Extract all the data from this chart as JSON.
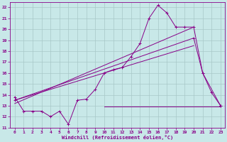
{
  "xlabel": "Windchill (Refroidissement éolien,°C)",
  "xlim": [
    -0.5,
    23.5
  ],
  "ylim": [
    11,
    22.5
  ],
  "xticks": [
    0,
    1,
    2,
    3,
    4,
    5,
    6,
    7,
    8,
    9,
    10,
    11,
    12,
    13,
    14,
    15,
    16,
    17,
    18,
    19,
    20,
    21,
    22,
    23
  ],
  "yticks": [
    11,
    12,
    13,
    14,
    15,
    16,
    17,
    18,
    19,
    20,
    21,
    22
  ],
  "bg_color": "#c8e8e8",
  "grid_color": "#a8c8c8",
  "line_color": "#880088",
  "line1_x": [
    0,
    1,
    2,
    3,
    4,
    5,
    6,
    7,
    8,
    9,
    10,
    11,
    12,
    13,
    14,
    15,
    16,
    17,
    18,
    19,
    20,
    21,
    22,
    23
  ],
  "line1_y": [
    13.8,
    12.5,
    12.5,
    12.5,
    12.0,
    12.5,
    11.3,
    13.5,
    13.6,
    14.5,
    16.0,
    16.3,
    16.5,
    17.5,
    18.7,
    21.0,
    22.2,
    21.5,
    20.2,
    20.2,
    20.2,
    16.0,
    14.2,
    13.0
  ],
  "line2_x": [
    0,
    20,
    21,
    23
  ],
  "line2_y": [
    13.5,
    19.2,
    16.0,
    13.0
  ],
  "line3_x": [
    10,
    23
  ],
  "line3_y": [
    12.9,
    12.9
  ],
  "line4_x": [
    0,
    20
  ],
  "line4_y": [
    13.2,
    20.2
  ],
  "line5_x": [
    0,
    20
  ],
  "line5_y": [
    13.5,
    18.5
  ]
}
